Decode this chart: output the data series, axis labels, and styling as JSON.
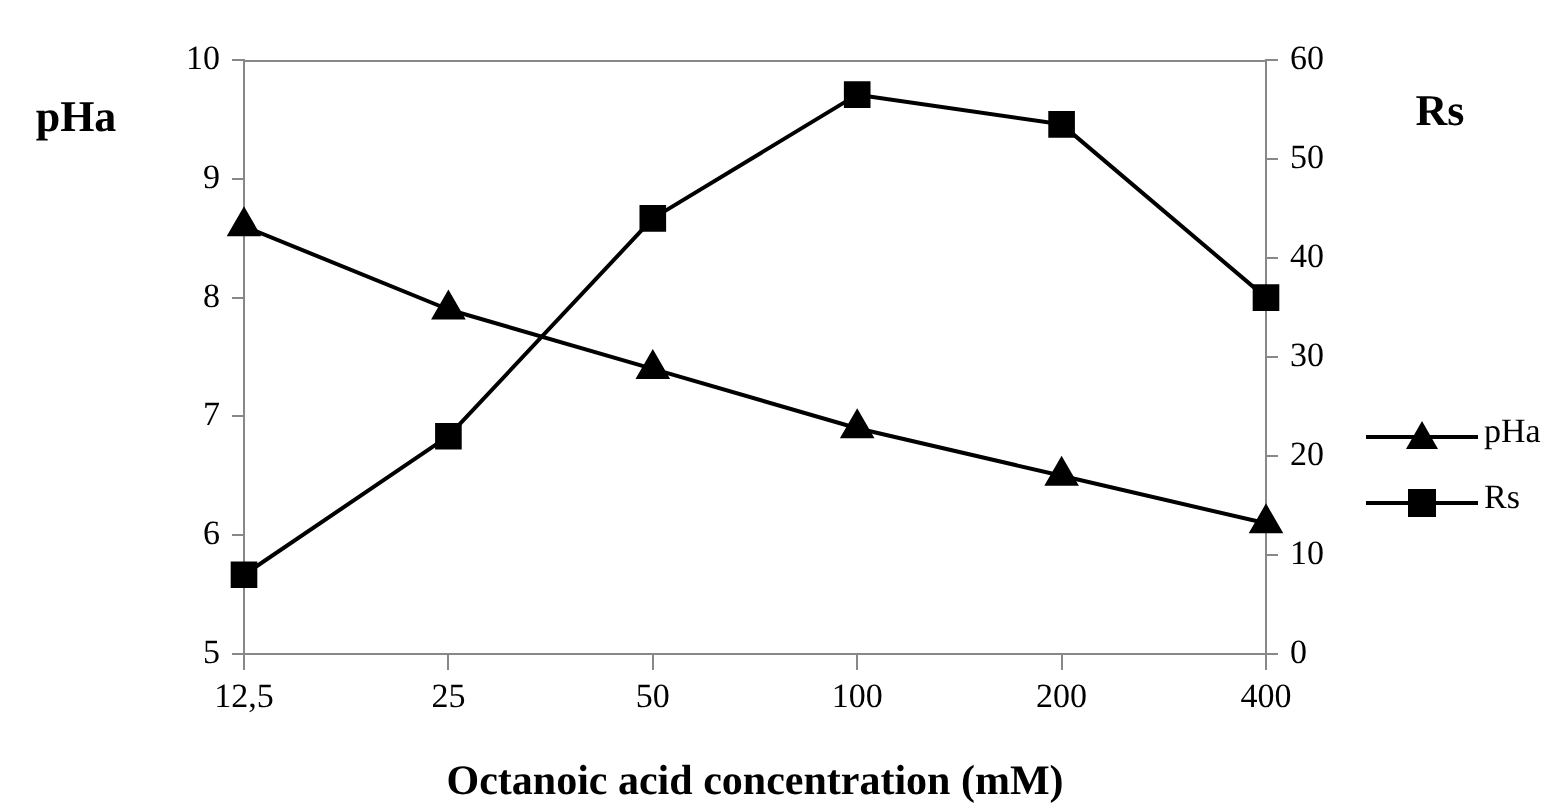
{
  "chart_data": {
    "type": "line",
    "xlabel": "Octanoic acid concentration (mM)",
    "ylabel": "pHa",
    "y2label": "Rs",
    "categories": [
      "12,5",
      "25",
      "50",
      "100",
      "200",
      "400"
    ],
    "series": [
      {
        "name": "pHa",
        "color": "#000000",
        "marker": "triangle",
        "values": [
          8.6,
          7.9,
          7.4,
          6.9,
          6.5,
          6.1
        ]
      },
      {
        "name": "Rs",
        "color": "#000000",
        "marker": "square",
        "axis": "y2",
        "values": [
          8,
          22,
          44,
          56.5,
          53.5,
          36
        ]
      }
    ],
    "ylim": [
      5,
      10
    ],
    "yticks": [
      5,
      6,
      7,
      8,
      9,
      10
    ],
    "y2lim": [
      0,
      60
    ],
    "y2ticks": [
      0,
      10,
      20,
      30,
      40,
      50,
      60
    ],
    "grid": false,
    "legend": "right",
    "line_style": "solid"
  }
}
